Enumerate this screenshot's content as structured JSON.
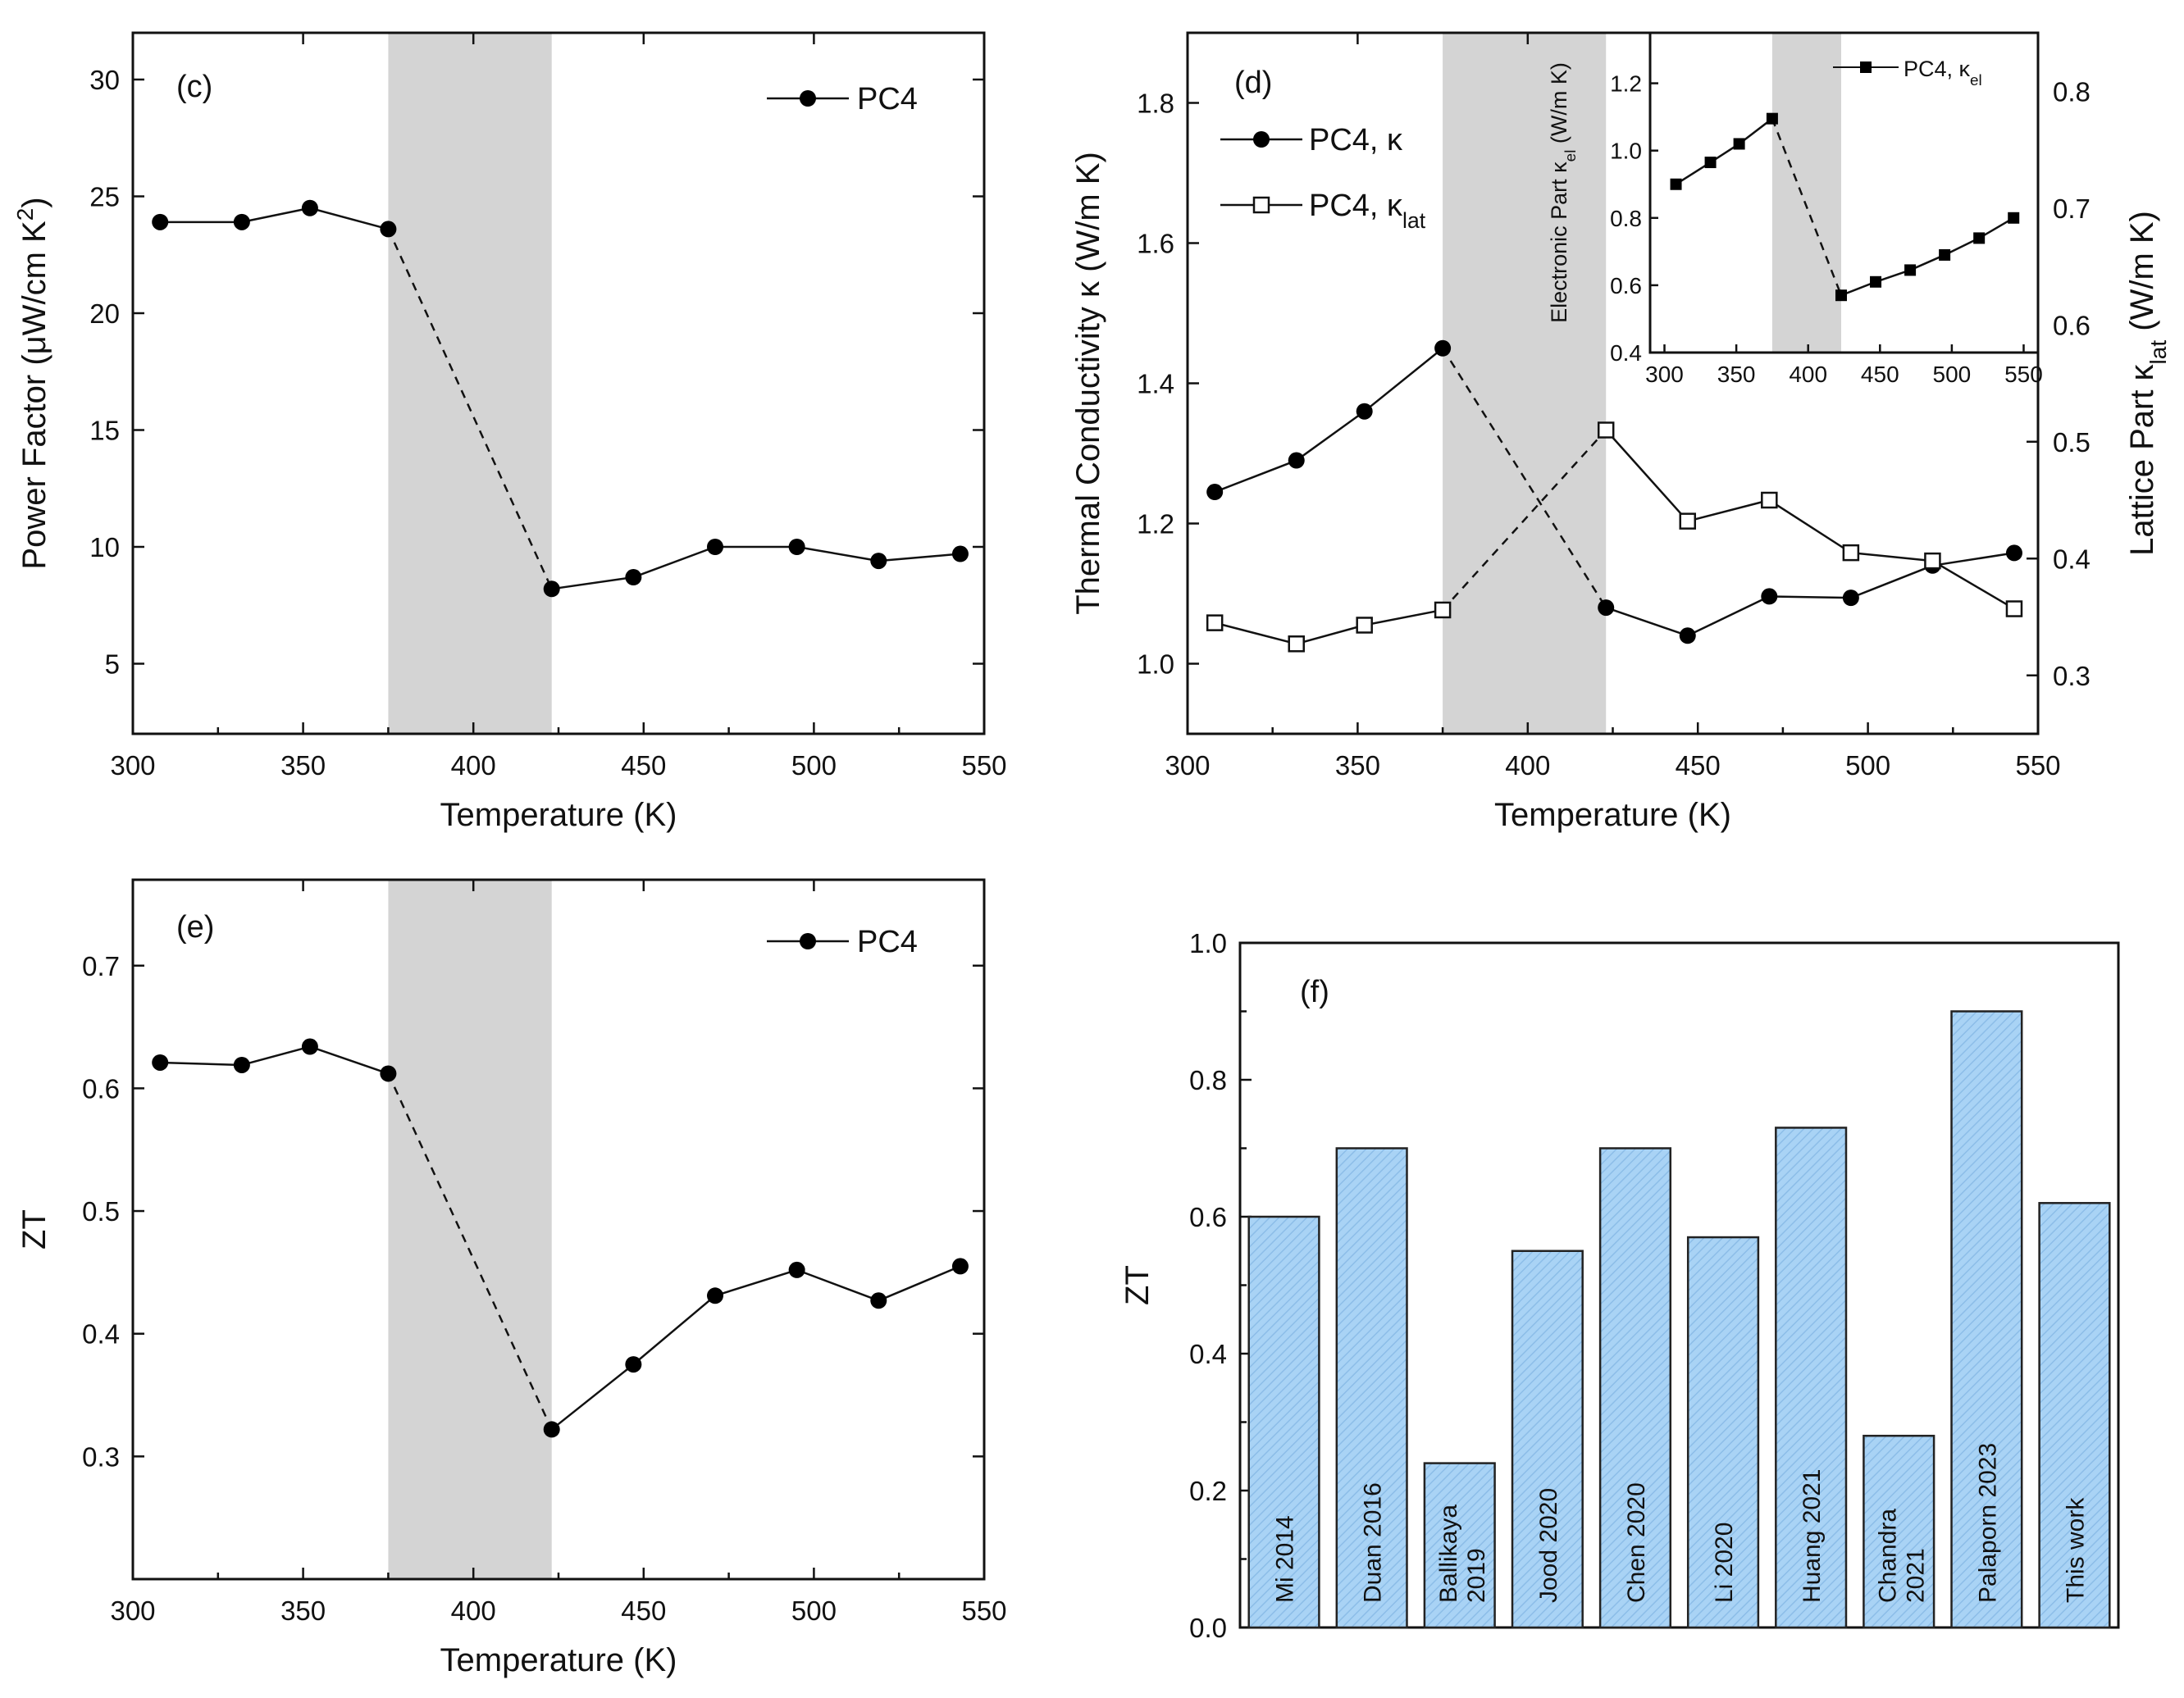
{
  "chart_data": [
    {
      "panel": "(c)",
      "type": "line",
      "title": "",
      "xlabel": "Temperature (K)",
      "ylabel": "Power Factor (μW/cm K²)",
      "xlim": [
        300,
        550
      ],
      "ylim": [
        2,
        32
      ],
      "xticks": [
        300,
        350,
        400,
        450,
        500,
        550
      ],
      "yticks": [
        5,
        10,
        15,
        20,
        25,
        30
      ],
      "shaded_region": [
        375,
        423
      ],
      "legend": "top-right",
      "series": [
        {
          "name": "PC4",
          "marker": "filled-circle",
          "x": [
            308,
            332,
            352,
            375,
            423,
            447,
            471,
            495,
            519,
            543
          ],
          "y": [
            23.9,
            23.9,
            24.5,
            23.6,
            8.2,
            8.7,
            10.0,
            10.0,
            9.4,
            9.7
          ],
          "dashed_segment_index": 3
        }
      ]
    },
    {
      "panel": "(d)",
      "type": "line",
      "title": "",
      "xlabel": "Temperature (K)",
      "ylabel": "Thermal Conductivity κ (W/m K)",
      "y2label": "Lattice Part κlat (W/m K)",
      "xlim": [
        300,
        550
      ],
      "ylim": [
        0.9,
        1.9
      ],
      "y2lim": [
        0.25,
        0.85
      ],
      "xticks": [
        300,
        350,
        400,
        450,
        500,
        550
      ],
      "yticks": [
        1.0,
        1.2,
        1.4,
        1.6,
        1.8
      ],
      "y2ticks": [
        0.3,
        0.4,
        0.5,
        0.6,
        0.7,
        0.8
      ],
      "shaded_region": [
        375,
        423
      ],
      "legend": "top-left",
      "series": [
        {
          "name": "PC4, κ",
          "axis": "left",
          "marker": "filled-circle",
          "x": [
            308,
            332,
            352,
            375,
            423,
            447,
            471,
            495,
            519,
            543
          ],
          "y": [
            1.245,
            1.29,
            1.36,
            1.45,
            1.08,
            1.04,
            1.096,
            1.094,
            1.14,
            1.158
          ],
          "dashed_segment_index": 3
        },
        {
          "name": "PC4, κlat",
          "axis": "right",
          "marker": "open-square",
          "x": [
            308,
            332,
            352,
            375,
            423,
            447,
            471,
            495,
            519,
            543
          ],
          "y": [
            0.345,
            0.327,
            0.343,
            0.356,
            0.51,
            0.432,
            0.45,
            0.405,
            0.398,
            0.357
          ],
          "dashed_segment_index": 3
        }
      ],
      "inset": {
        "type": "line",
        "ylabel": "Electronic Part κel (W/m K)",
        "xlim": [
          290,
          560
        ],
        "ylim": [
          0.4,
          1.35
        ],
        "xticks": [
          300,
          350,
          400,
          450,
          500,
          550
        ],
        "yticks": [
          0.4,
          0.6,
          0.8,
          1.0,
          1.2
        ],
        "shaded_region": [
          375,
          423
        ],
        "legend": "top-right",
        "series": [
          {
            "name": "PC4, κel",
            "marker": "filled-square",
            "x": [
              308,
              332,
              352,
              375,
              423,
              447,
              471,
              495,
              519,
              543
            ],
            "y": [
              0.9,
              0.965,
              1.02,
              1.095,
              0.57,
              0.61,
              0.645,
              0.69,
              0.74,
              0.8
            ],
            "dashed_segment_index": 3
          }
        ]
      }
    },
    {
      "panel": "(e)",
      "type": "line",
      "title": "",
      "xlabel": "Temperature (K)",
      "ylabel": "ZT",
      "xlim": [
        300,
        550
      ],
      "ylim": [
        0.2,
        0.77
      ],
      "xticks": [
        300,
        350,
        400,
        450,
        500,
        550
      ],
      "yticks": [
        0.3,
        0.4,
        0.5,
        0.6,
        0.7
      ],
      "shaded_region": [
        375,
        423
      ],
      "legend": "top-right",
      "series": [
        {
          "name": "PC4",
          "marker": "filled-circle",
          "x": [
            308,
            332,
            352,
            375,
            423,
            447,
            471,
            495,
            519,
            543
          ],
          "y": [
            0.621,
            0.619,
            0.634,
            0.612,
            0.322,
            0.375,
            0.431,
            0.452,
            0.427,
            0.455
          ],
          "dashed_segment_index": 3
        }
      ]
    },
    {
      "panel": "(f)",
      "type": "bar",
      "title": "",
      "xlabel": "",
      "ylabel": "ZT",
      "ylim": [
        0.0,
        1.0
      ],
      "yticks": [
        0.0,
        0.2,
        0.4,
        0.6,
        0.8,
        1.0
      ],
      "bar_color": "#a9d3f5",
      "categories": [
        [
          "Mi 2014"
        ],
        [
          "Duan 2016"
        ],
        [
          "Ballikaya",
          "2019"
        ],
        [
          "Jood 2020"
        ],
        [
          "Chen 2020"
        ],
        [
          "Li 2020"
        ],
        [
          "Huang 2021"
        ],
        [
          "Chandra",
          "2021"
        ],
        [
          "Palaporn 2023"
        ],
        [
          "This work"
        ]
      ],
      "values": [
        0.6,
        0.7,
        0.24,
        0.55,
        0.7,
        0.57,
        0.73,
        0.28,
        0.9,
        0.62
      ]
    }
  ]
}
